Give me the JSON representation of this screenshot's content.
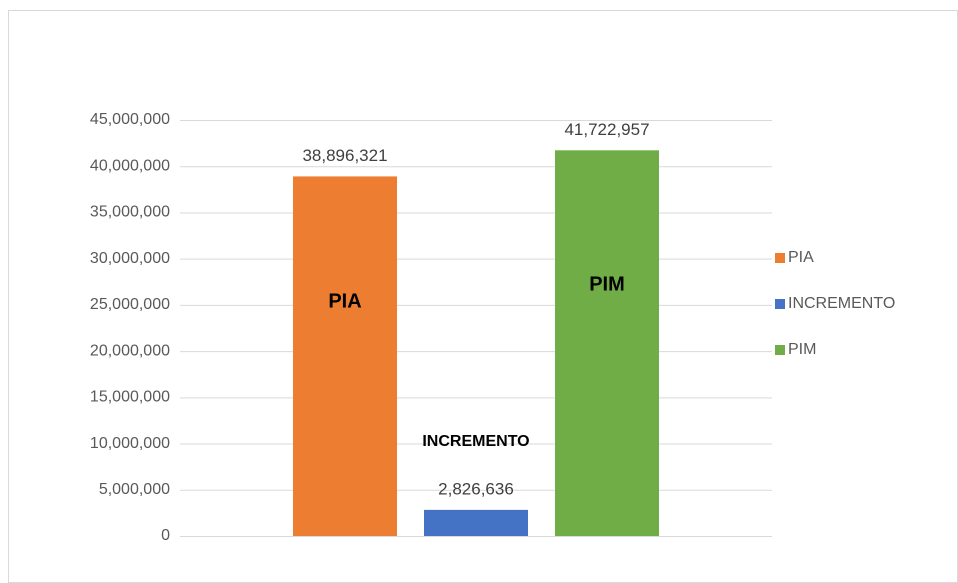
{
  "chart_data": {
    "type": "bar",
    "categories": [
      null
    ],
    "series": [
      {
        "name": "PIA",
        "color": "#ed7d31",
        "values": [
          38896321
        ],
        "value_labels": [
          "38,896,321"
        ]
      },
      {
        "name": "INCREMENTO",
        "color": "#4472c4",
        "values": [
          2826636
        ],
        "value_labels": [
          "2,826,636"
        ]
      },
      {
        "name": "PIM",
        "color": "#70ad47",
        "values": [
          41722957
        ],
        "value_labels": [
          "41,722,957"
        ]
      }
    ],
    "ylim": [
      0,
      45000000
    ],
    "yticks": [
      0,
      {
        "value": 5000000,
        "label": "5,000,000"
      },
      {
        "value": 10000000,
        "label": "10,000,000"
      },
      {
        "value": 15000000,
        "label": "15,000,000"
      },
      {
        "value": 20000000,
        "label": "20,000,000"
      },
      {
        "value": 25000000,
        "label": "25,000,000"
      },
      {
        "value": 30000000,
        "label": "30,000,000"
      },
      {
        "value": 35000000,
        "label": "35,000,000"
      },
      {
        "value": 40000000,
        "label": "40,000,000"
      },
      {
        "value": 45000000,
        "label": "45,000,000"
      }
    ],
    "grid": true,
    "legend": "right"
  }
}
